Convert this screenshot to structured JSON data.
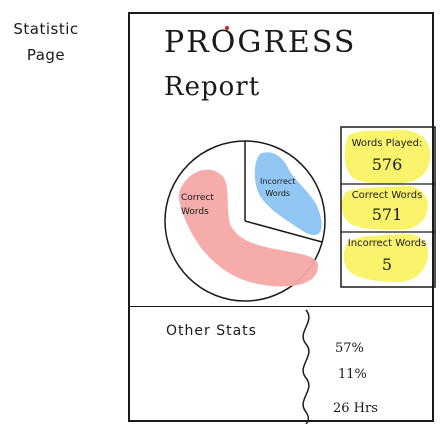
{
  "side_note": {
    "line1": "Statistic",
    "line2": "Page"
  },
  "header": {
    "title_line1": "PROGRESS",
    "title_line2": "Report"
  },
  "pie": {
    "correct_label_line1": "Correct",
    "correct_label_line2": "Words",
    "incorrect_label_line1": "Incorrect",
    "incorrect_label_line2": "Words",
    "colors": {
      "correct": "#f7a8a8",
      "incorrect": "#8cc4f2"
    }
  },
  "stats": [
    {
      "label": "Words Played:",
      "value": "576"
    },
    {
      "label": "Correct Words",
      "value": "571"
    },
    {
      "label": "Incorrect Words",
      "value": "5"
    }
  ],
  "other_stats": {
    "title": "Other Stats",
    "values": [
      "57%",
      "11%",
      "26 Hrs"
    ]
  },
  "colors": {
    "highlight": "#f9f46b",
    "ink": "#1a1a1a"
  }
}
